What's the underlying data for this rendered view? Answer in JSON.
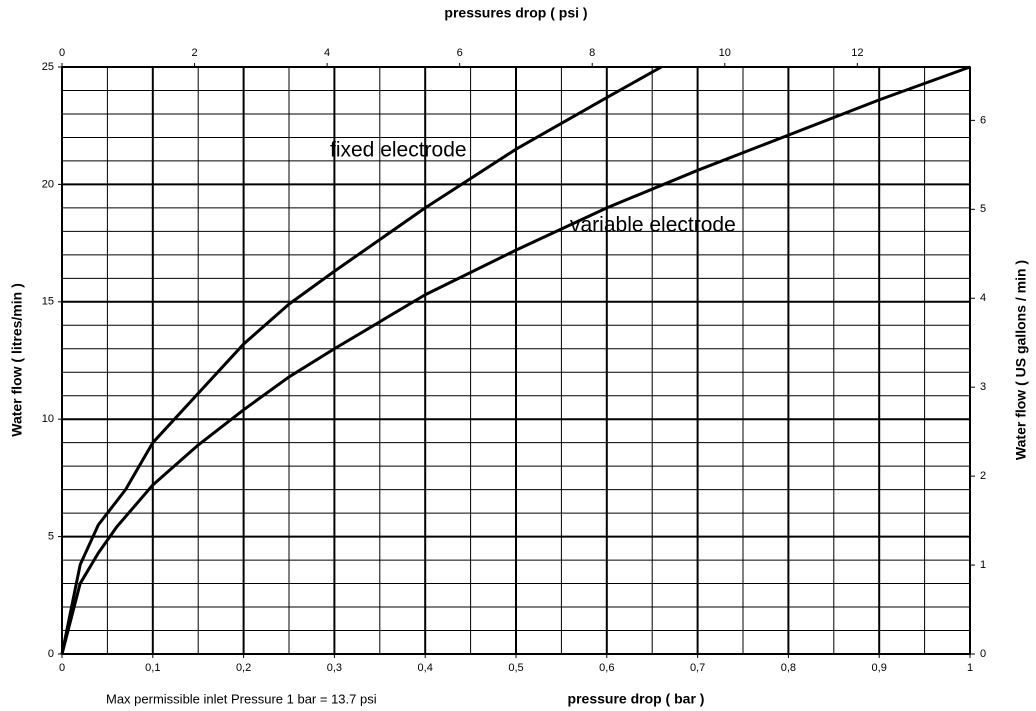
{
  "chart_data": {
    "type": "line",
    "title": "pressures drop ( psi )",
    "x_label": "pressure drop ( bar )",
    "y_label": "Water flow ( litres/min )",
    "y2_label": "Water flow ( US gallons / min )",
    "note": "Max  permissible inlet Pressure  1 bar = 13.7 psi",
    "xlim": [
      0,
      1
    ],
    "xticks": [
      0,
      {
        "value": 0.1,
        "label": "0,1"
      },
      {
        "value": 0.2,
        "label": "0,2"
      },
      {
        "value": 0.3,
        "label": "0,3"
      },
      {
        "value": 0.4,
        "label": "0,4"
      },
      {
        "value": 0.5,
        "label": "0,5"
      },
      {
        "value": 0.6,
        "label": "0,6"
      },
      {
        "value": 0.7,
        "label": "0,7"
      },
      {
        "value": 0.8,
        "label": "0,8"
      },
      {
        "value": 0.9,
        "label": "0,9"
      },
      1
    ],
    "xminorticks": [
      0.05,
      0.15,
      0.25,
      0.35,
      0.45,
      0.55,
      0.65,
      0.75,
      0.85,
      0.95
    ],
    "x2lim": [
      0,
      13.7
    ],
    "x2ticks": [
      0,
      2,
      4,
      6,
      8,
      10,
      12
    ],
    "ylim": [
      0,
      25
    ],
    "yticks": [
      0,
      5,
      10,
      15,
      20,
      25
    ],
    "yminorticks": [
      1,
      2,
      3,
      4,
      6,
      7,
      8,
      9,
      11,
      12,
      13,
      14,
      16,
      17,
      18,
      19,
      21,
      22,
      23,
      24
    ],
    "y2lim": [
      0,
      6.6
    ],
    "y2ticks": [
      0,
      1,
      2,
      3,
      4,
      5,
      6
    ],
    "grid": true,
    "series": [
      {
        "name": "fixed electrode",
        "color": "#000000",
        "x": [
          0,
          0.02,
          0.04,
          0.07,
          0.1,
          0.15,
          0.2,
          0.25,
          0.3,
          0.4,
          0.5,
          0.6,
          0.66
        ],
        "values": [
          0,
          3.8,
          5.5,
          7,
          9,
          11.1,
          13.2,
          14.9,
          16.3,
          19,
          21.5,
          23.7,
          25
        ]
      },
      {
        "name": "variable electrode",
        "color": "#000000",
        "x": [
          0,
          0.02,
          0.04,
          0.06,
          0.1,
          0.15,
          0.2,
          0.25,
          0.3,
          0.4,
          0.5,
          0.6,
          0.7,
          0.8,
          0.9,
          1
        ],
        "values": [
          0,
          3,
          4.3,
          5.4,
          7.2,
          8.9,
          10.4,
          11.8,
          13,
          15.3,
          17.2,
          19,
          20.6,
          22.1,
          23.6,
          25
        ]
      }
    ]
  }
}
